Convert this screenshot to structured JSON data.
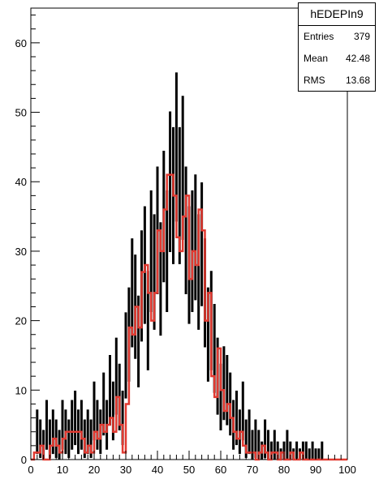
{
  "chart_data": {
    "type": "histogram",
    "xlim": [
      0,
      100
    ],
    "ylim": [
      0,
      65
    ],
    "xticks": [
      0,
      10,
      20,
      30,
      40,
      50,
      60,
      70,
      80,
      90,
      100
    ],
    "yticks": [
      0,
      10,
      20,
      30,
      40,
      50,
      60
    ],
    "stats": {
      "title": "hEDEPIn9",
      "rows": [
        {
          "label": "Entries",
          "value": "379"
        },
        {
          "label": "Mean",
          "value": "42.48"
        },
        {
          "label": "RMS",
          "value": "13.68"
        }
      ]
    },
    "series": [
      {
        "style": "points-with-errors",
        "color": "#000000",
        "bin_width": 0.5,
        "x": [
          2,
          3,
          4,
          5,
          6,
          7,
          8,
          9,
          10,
          11,
          12,
          13,
          14,
          15,
          16,
          17,
          18,
          19,
          20,
          21,
          22,
          23,
          24,
          25,
          26,
          27,
          28,
          29,
          30,
          31,
          32,
          33,
          34,
          35,
          36,
          37,
          38,
          39,
          40,
          41,
          42,
          43,
          44,
          45,
          46,
          47,
          48,
          49,
          50,
          51,
          52,
          53,
          54,
          55,
          56,
          57,
          58,
          59,
          60,
          61,
          62,
          63,
          64,
          65,
          66,
          67,
          68,
          69,
          70,
          71,
          72,
          73,
          74,
          75,
          76,
          77,
          78,
          79,
          80,
          81,
          82,
          83,
          84,
          85,
          86,
          87,
          88,
          89,
          90,
          91,
          92
        ],
        "y": [
          4,
          3,
          2,
          5,
          3,
          4,
          3,
          2,
          5,
          4,
          3,
          5,
          6,
          4,
          5,
          3,
          4,
          3,
          7,
          5,
          4,
          8,
          5,
          10,
          7,
          12,
          9,
          6,
          15,
          18,
          24,
          22,
          17,
          25,
          28,
          20,
          30,
          27,
          33,
          26,
          35,
          30,
          40,
          38,
          45,
          38,
          42,
          33,
          28,
          30,
          32,
          27,
          31,
          24,
          18,
          20,
          16,
          12,
          9,
          11,
          10,
          8,
          5,
          6,
          4,
          7,
          3,
          4,
          2,
          3,
          2,
          1,
          3,
          2,
          1,
          2,
          1,
          0,
          1,
          2,
          1,
          0,
          1,
          0,
          1,
          1,
          0,
          1,
          0,
          0,
          1
        ]
      },
      {
        "style": "step",
        "color": "#e23a31",
        "bin_width": 1,
        "x": [
          0,
          1,
          2,
          3,
          4,
          5,
          6,
          7,
          8,
          9,
          10,
          11,
          12,
          13,
          14,
          15,
          16,
          17,
          18,
          19,
          20,
          21,
          22,
          23,
          24,
          25,
          26,
          27,
          28,
          29,
          30,
          31,
          32,
          33,
          34,
          35,
          36,
          37,
          38,
          39,
          40,
          41,
          42,
          43,
          44,
          45,
          46,
          47,
          48,
          49,
          50,
          51,
          52,
          53,
          54,
          55,
          56,
          57,
          58,
          59,
          60,
          61,
          62,
          63,
          64,
          65,
          66,
          67,
          68,
          69,
          70,
          71,
          72,
          73,
          74,
          75,
          76,
          77,
          78,
          79,
          80,
          81,
          82,
          83,
          84,
          85,
          86,
          87,
          88,
          89,
          90,
          91,
          92,
          93,
          94,
          95,
          96,
          97,
          98,
          99
        ],
        "y": [
          0,
          1,
          1,
          2,
          0,
          0,
          2,
          3,
          2,
          1,
          3,
          4,
          4,
          4,
          4,
          4,
          3,
          1,
          2,
          1,
          4,
          3,
          5,
          4,
          5,
          6,
          4,
          9,
          5,
          1,
          8,
          19,
          18,
          22,
          19,
          27,
          28,
          24,
          20,
          24,
          33,
          30,
          36,
          41,
          41,
          38,
          32,
          30,
          35,
          38,
          26,
          30,
          28,
          36,
          33,
          20,
          24,
          12,
          9,
          16,
          10,
          7,
          8,
          6,
          4,
          3,
          4,
          2,
          1,
          1,
          1,
          0,
          1,
          2,
          1,
          0,
          1,
          1,
          0,
          1,
          0,
          0,
          1,
          0,
          0,
          1,
          0,
          0,
          0,
          0,
          0,
          0,
          0,
          0,
          0,
          0,
          0,
          0,
          0,
          0
        ]
      }
    ]
  }
}
